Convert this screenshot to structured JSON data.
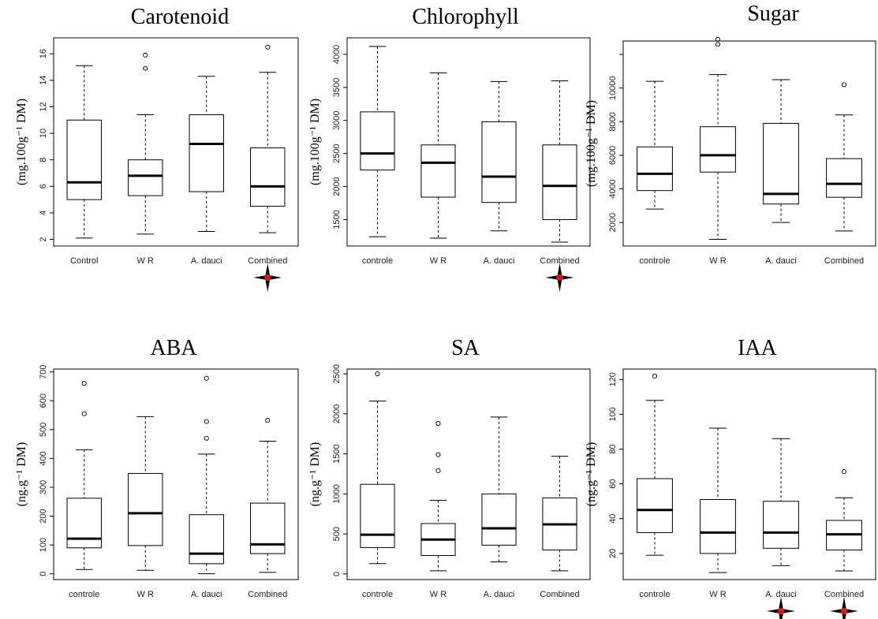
{
  "colors": {
    "ink": "#000000",
    "marker_fill": "#d11a1a",
    "marker_outline": "#000000"
  },
  "chart_data": [
    {
      "type": "box",
      "title": "Carotenoid",
      "ylabel": "(mg.100g⁻¹ DM)",
      "ylim": [
        1.5,
        17.2
      ],
      "yticks": [
        2,
        4,
        6,
        8,
        10,
        12,
        14,
        16
      ],
      "ytick_labels": [
        "2",
        "4",
        "6",
        "8",
        "10",
        "12",
        "14",
        "16"
      ],
      "categories": [
        "Control",
        "W R",
        "A. dauci",
        "Combined"
      ],
      "boxes": [
        {
          "whisker_low": 2.1,
          "q1": 5.0,
          "median": 6.3,
          "q3": 11.0,
          "whisker_high": 15.1,
          "outliers": []
        },
        {
          "whisker_low": 2.4,
          "q1": 5.3,
          "median": 6.8,
          "q3": 8.0,
          "whisker_high": 11.4,
          "outliers": [
            14.9,
            15.9
          ]
        },
        {
          "whisker_low": 2.6,
          "q1": 5.6,
          "median": 9.2,
          "q3": 11.4,
          "whisker_high": 14.3,
          "outliers": []
        },
        {
          "whisker_low": 2.5,
          "q1": 4.5,
          "median": 6.0,
          "q3": 8.9,
          "whisker_high": 14.6,
          "outliers": [
            16.5
          ]
        }
      ],
      "markers": [
        "Combined"
      ]
    },
    {
      "type": "box",
      "title": "Chlorophyll",
      "ylabel": "(mg.100g⁻¹ DM)",
      "ylim": [
        1100,
        4250
      ],
      "yticks": [
        1500,
        2000,
        2500,
        3000,
        3500,
        4000
      ],
      "ytick_labels": [
        "1500",
        "2000",
        "2500",
        "3000",
        "3500",
        "4000"
      ],
      "categories": [
        "controle",
        "W R",
        "A. dauci",
        "Combined"
      ],
      "boxes": [
        {
          "whisker_low": 1240,
          "q1": 2250,
          "median": 2500,
          "q3": 3130,
          "whisker_high": 4120,
          "outliers": []
        },
        {
          "whisker_low": 1220,
          "q1": 1840,
          "median": 2360,
          "q3": 2630,
          "whisker_high": 3720,
          "outliers": []
        },
        {
          "whisker_low": 1330,
          "q1": 1760,
          "median": 2150,
          "q3": 2980,
          "whisker_high": 3590,
          "outliers": []
        },
        {
          "whisker_low": 1160,
          "q1": 1500,
          "median": 2010,
          "q3": 2630,
          "whisker_high": 3600,
          "outliers": []
        }
      ],
      "markers": [
        "Combined"
      ]
    },
    {
      "type": "box",
      "title": "Sugar",
      "ylabel": "(mg.100g⁻¹ DM)",
      "ylim": [
        600,
        12800
      ],
      "yticks": [
        2000,
        4000,
        6000,
        8000,
        10000,
        12000
      ],
      "ytick_labels": [
        "2000",
        "4000",
        "6000",
        "8000",
        "10000",
        ""
      ],
      "categories": [
        "controle",
        "W R",
        "A. dauci",
        "Combined"
      ],
      "boxes": [
        {
          "whisker_low": 2800,
          "q1": 3900,
          "median": 4900,
          "q3": 6500,
          "whisker_high": 10400,
          "outliers": []
        },
        {
          "whisker_low": 1000,
          "q1": 5000,
          "median": 6000,
          "q3": 7700,
          "whisker_high": 10800,
          "outliers": [
            12600,
            12900
          ]
        },
        {
          "whisker_low": 2000,
          "q1": 3100,
          "median": 3700,
          "q3": 7900,
          "whisker_high": 10500,
          "outliers": []
        },
        {
          "whisker_low": 1500,
          "q1": 3500,
          "median": 4300,
          "q3": 5800,
          "whisker_high": 8400,
          "outliers": [
            10200
          ]
        }
      ],
      "markers": []
    },
    {
      "type": "box",
      "title": "ABA",
      "ylabel": "(ng.g⁻¹ DM)",
      "ylim": [
        -20,
        710
      ],
      "yticks": [
        0,
        100,
        200,
        300,
        400,
        500,
        600,
        700
      ],
      "ytick_labels": [
        "0",
        "100",
        "200",
        "300",
        "400",
        "500",
        "600",
        "700"
      ],
      "categories": [
        "controle",
        "W R",
        "A. dauci",
        "Combined"
      ],
      "boxes": [
        {
          "whisker_low": 15,
          "q1": 90,
          "median": 122,
          "q3": 262,
          "whisker_high": 430,
          "outliers": [
            555,
            660
          ]
        },
        {
          "whisker_low": 12,
          "q1": 98,
          "median": 210,
          "q3": 348,
          "whisker_high": 545,
          "outliers": []
        },
        {
          "whisker_low": 0,
          "q1": 35,
          "median": 70,
          "q3": 205,
          "whisker_high": 415,
          "outliers": [
            470,
            528,
            678
          ]
        },
        {
          "whisker_low": 5,
          "q1": 70,
          "median": 102,
          "q3": 245,
          "whisker_high": 460,
          "outliers": [
            532
          ]
        }
      ],
      "markers": []
    },
    {
      "type": "box",
      "title": "SA",
      "ylabel": "(ng.g⁻¹ DM)",
      "ylim": [
        -70,
        2560
      ],
      "yticks": [
        0,
        500,
        1000,
        1500,
        2000,
        2500
      ],
      "ytick_labels": [
        "0",
        "500",
        "1000",
        "1500",
        "2000",
        "2500"
      ],
      "categories": [
        "controle",
        "W R",
        "A. dauci",
        "Combined"
      ],
      "boxes": [
        {
          "whisker_low": 130,
          "q1": 330,
          "median": 490,
          "q3": 1120,
          "whisker_high": 2160,
          "outliers": [
            2500
          ]
        },
        {
          "whisker_low": 40,
          "q1": 230,
          "median": 430,
          "q3": 630,
          "whisker_high": 920,
          "outliers": [
            1290,
            1490,
            1880
          ]
        },
        {
          "whisker_low": 150,
          "q1": 360,
          "median": 570,
          "q3": 1000,
          "whisker_high": 1960,
          "outliers": []
        },
        {
          "whisker_low": 40,
          "q1": 300,
          "median": 620,
          "q3": 950,
          "whisker_high": 1470,
          "outliers": []
        }
      ],
      "markers": []
    },
    {
      "type": "box",
      "title": "IAA",
      "ylabel": "(ng.g⁻¹ DM)",
      "ylim": [
        5,
        126
      ],
      "yticks": [
        20,
        40,
        60,
        80,
        100,
        120
      ],
      "ytick_labels": [
        "20",
        "40",
        "60",
        "80",
        "100",
        "120"
      ],
      "categories": [
        "controle",
        "W R",
        "A. dauci",
        "Combined"
      ],
      "boxes": [
        {
          "whisker_low": 19,
          "q1": 32,
          "median": 45,
          "q3": 63,
          "whisker_high": 108,
          "outliers": [
            122
          ]
        },
        {
          "whisker_low": 9,
          "q1": 20,
          "median": 32,
          "q3": 51,
          "whisker_high": 92,
          "outliers": []
        },
        {
          "whisker_low": 13,
          "q1": 23,
          "median": 32,
          "q3": 50,
          "whisker_high": 86,
          "outliers": []
        },
        {
          "whisker_low": 10,
          "q1": 22,
          "median": 31,
          "q3": 39,
          "whisker_high": 52,
          "outliers": [
            67
          ]
        }
      ],
      "markers": [
        "A. dauci",
        "Combined"
      ]
    }
  ]
}
